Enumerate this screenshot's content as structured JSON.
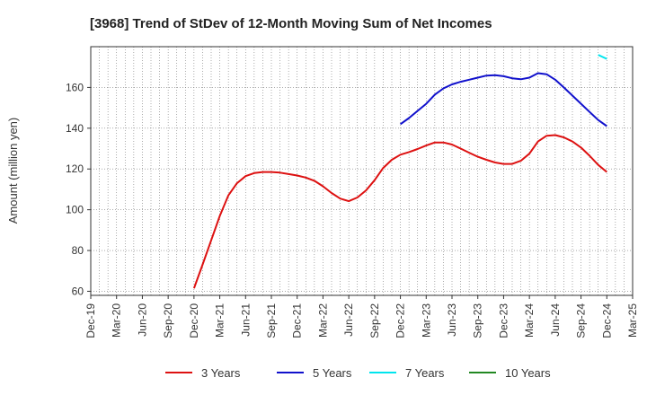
{
  "chart_data": {
    "type": "line",
    "title": "[3968]  Trend of StDev of 12-Month Moving Sum of Net Incomes",
    "ylabel": "Amount (million yen)",
    "xlabel": "",
    "ylim": [
      58,
      180
    ],
    "yticks": [
      60,
      80,
      100,
      120,
      140,
      160
    ],
    "xticks": [
      "Dec-19",
      "Mar-20",
      "Jun-20",
      "Sep-20",
      "Dec-20",
      "Mar-21",
      "Jun-21",
      "Sep-21",
      "Dec-21",
      "Mar-22",
      "Jun-22",
      "Sep-22",
      "Dec-22",
      "Mar-23",
      "Jun-23",
      "Sep-23",
      "Dec-23",
      "Mar-24",
      "Jun-24",
      "Sep-24",
      "Dec-24",
      "Mar-25"
    ],
    "grid": true,
    "legend_position": "bottom",
    "series": [
      {
        "name": "3 Years",
        "color": "#dd1111",
        "x": [
          "Dec-20",
          "Jan-21",
          "Feb-21",
          "Mar-21",
          "Apr-21",
          "May-21",
          "Jun-21",
          "Jul-21",
          "Aug-21",
          "Sep-21",
          "Oct-21",
          "Nov-21",
          "Dec-21",
          "Jan-22",
          "Feb-22",
          "Mar-22",
          "Apr-22",
          "May-22",
          "Jun-22",
          "Jul-22",
          "Aug-22",
          "Sep-22",
          "Oct-22",
          "Nov-22",
          "Dec-22",
          "Jan-23",
          "Feb-23",
          "Mar-23",
          "Apr-23",
          "May-23",
          "Jun-23",
          "Jul-23",
          "Aug-23",
          "Sep-23",
          "Oct-23",
          "Nov-23",
          "Dec-23",
          "Jan-24",
          "Feb-24",
          "Mar-24",
          "Apr-24",
          "May-24",
          "Jun-24",
          "Jul-24",
          "Aug-24",
          "Sep-24",
          "Oct-24",
          "Nov-24",
          "Dec-24"
        ],
        "values": [
          61.5,
          73,
          85,
          97,
          107,
          113,
          116.5,
          118,
          118.5,
          118.5,
          118.2,
          117.5,
          116.8,
          115.8,
          114.2,
          111.5,
          108.2,
          105.5,
          104.2,
          106,
          109.5,
          114.5,
          120.5,
          124.5,
          127,
          128.3,
          129.8,
          131.5,
          133,
          133,
          132,
          130,
          128,
          126,
          124.5,
          123.2,
          122.5,
          122.5,
          124,
          127.5,
          133.5,
          136.3,
          136.6,
          135.5,
          133.5,
          130.5,
          126.5,
          122,
          118.5
        ]
      },
      {
        "name": "5 Years",
        "color": "#1111cc",
        "x": [
          "Dec-22",
          "Jan-23",
          "Feb-23",
          "Mar-23",
          "Apr-23",
          "May-23",
          "Jun-23",
          "Jul-23",
          "Aug-23",
          "Sep-23",
          "Oct-23",
          "Nov-23",
          "Dec-23",
          "Jan-24",
          "Feb-24",
          "Mar-24",
          "Apr-24",
          "May-24",
          "Jun-24",
          "Jul-24",
          "Aug-24",
          "Sep-24",
          "Oct-24",
          "Nov-24",
          "Dec-24"
        ],
        "values": [
          142,
          145,
          148.5,
          152,
          156.5,
          159.5,
          161.5,
          162.8,
          163.8,
          164.8,
          165.8,
          166,
          165.5,
          164.5,
          164,
          164.8,
          167,
          166.5,
          163.8,
          160,
          156,
          152,
          148,
          144,
          141
        ]
      },
      {
        "name": "7 Years",
        "color": "#00e5ee",
        "x": [
          "Nov-24",
          "Dec-24"
        ],
        "values": [
          176,
          174
        ]
      },
      {
        "name": "10 Years",
        "color": "#228822",
        "x": [],
        "values": []
      }
    ]
  }
}
